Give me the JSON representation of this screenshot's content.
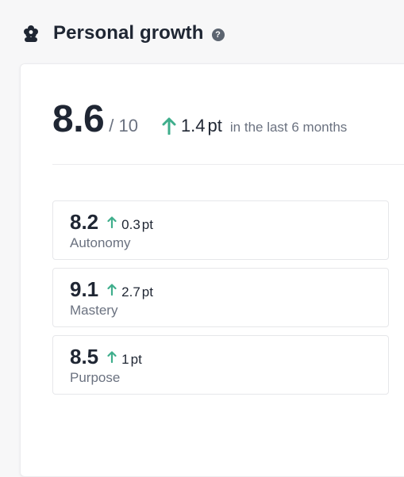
{
  "header": {
    "title": "Personal growth",
    "help_glyph": "?",
    "icon": "flower-icon"
  },
  "summary": {
    "score": "8.6",
    "out_of": "/ 10",
    "delta_value": "1.4",
    "delta_unit": "pt",
    "period": "in the last 6 months"
  },
  "metrics": [
    {
      "score": "8.2",
      "delta": "0.3",
      "unit": "pt",
      "label": "Autonomy"
    },
    {
      "score": "9.1",
      "delta": "2.7",
      "unit": "pt",
      "label": "Mastery"
    },
    {
      "score": "8.5",
      "delta": "1",
      "unit": "pt",
      "label": "Purpose"
    }
  ],
  "colors": {
    "up": "#3fae8c",
    "text": "#1f2633",
    "muted": "#6b7280"
  }
}
